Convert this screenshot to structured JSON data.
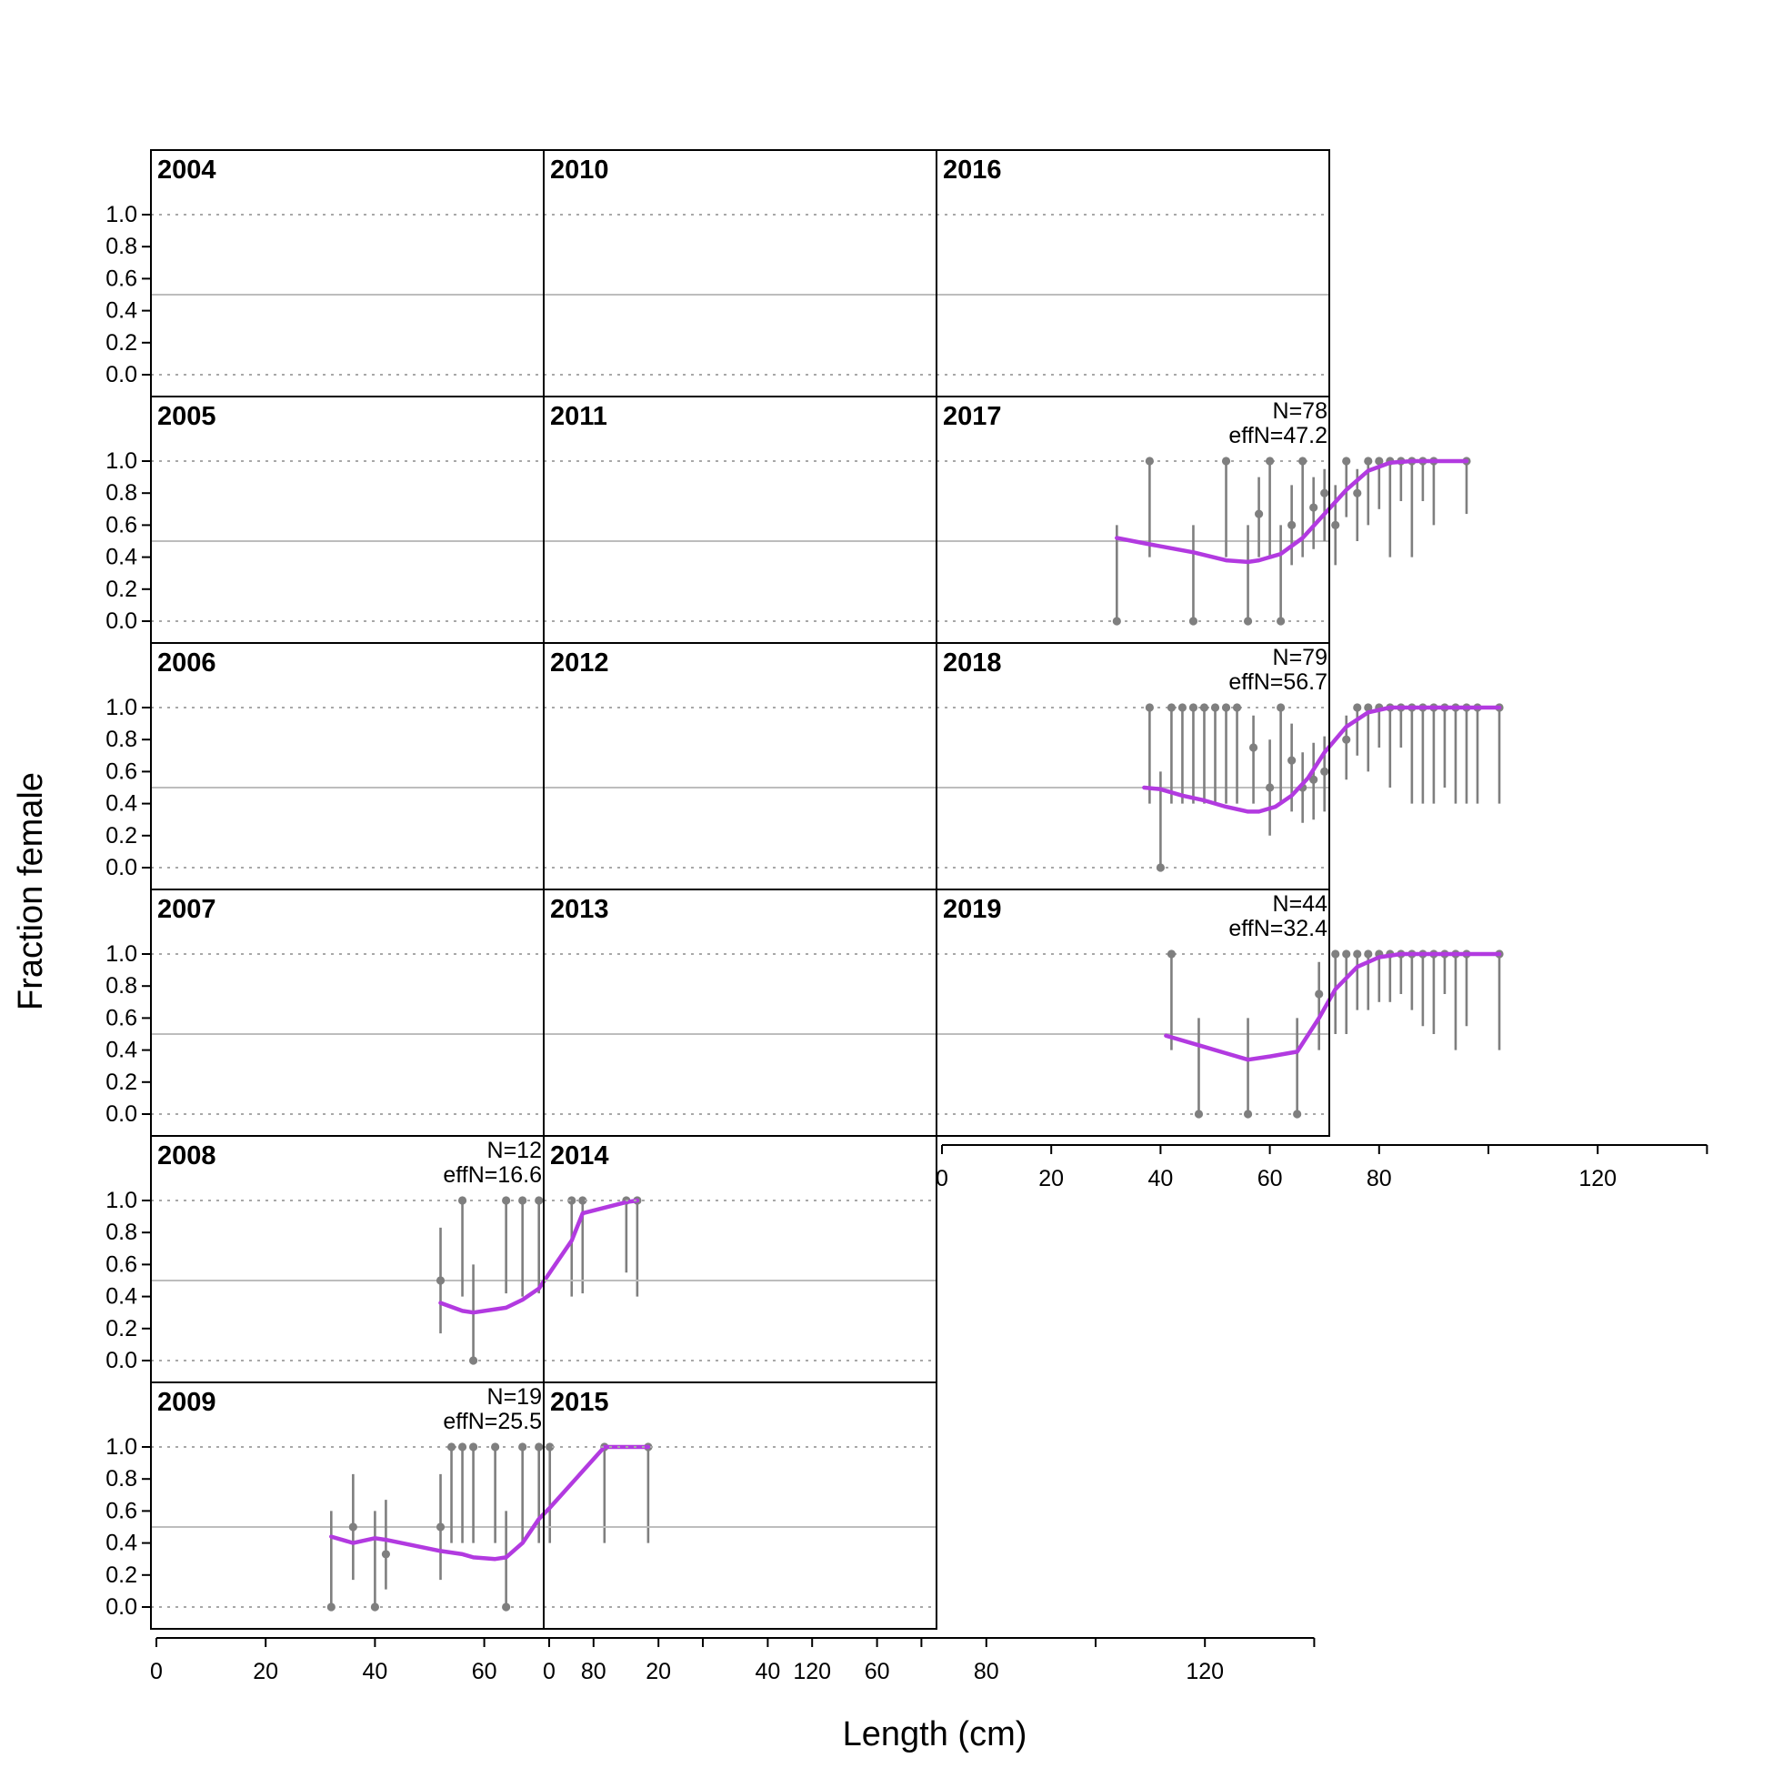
{
  "chart_data": {
    "type": "line",
    "ylabel": "Fraction female",
    "xlabel": "Length (cm)",
    "ylim": [
      0,
      1
    ],
    "yticks": [
      "0.0",
      "0.2",
      "0.4",
      "0.6",
      "0.8",
      "1.0"
    ],
    "xlim": [
      0,
      140
    ],
    "xticks": [
      "0",
      "20",
      "40",
      "60",
      "80",
      "120"
    ],
    "xtick_minor": [
      100,
      140
    ],
    "reference_lines": {
      "dotted": [
        0,
        1
      ],
      "solid": [
        0.5
      ]
    },
    "colors": {
      "observed": "#7f7f7f",
      "expected": "#b23ae0",
      "reference": "#bdbdbd"
    },
    "panels": [
      {
        "year": "2004",
        "col": 0,
        "row": 0
      },
      {
        "year": "2005",
        "col": 0,
        "row": 1
      },
      {
        "year": "2006",
        "col": 0,
        "row": 2
      },
      {
        "year": "2007",
        "col": 0,
        "row": 3
      },
      {
        "year": "2008",
        "col": 0,
        "row": 4,
        "n_label": "N=12",
        "effn_label": "effN=16.6",
        "observed": [
          {
            "x": 52,
            "y": 0.5,
            "lo": 0.17,
            "hi": 0.83
          },
          {
            "x": 56,
            "y": 1.0,
            "lo": 0.4,
            "hi": 1.0
          },
          {
            "x": 58,
            "y": 0.0,
            "lo": 0.0,
            "hi": 0.6
          },
          {
            "x": 64,
            "y": 1.0,
            "lo": 0.42,
            "hi": 1.0
          },
          {
            "x": 67,
            "y": 1.0,
            "lo": 0.4,
            "hi": 1.0
          },
          {
            "x": 70,
            "y": 1.0,
            "lo": 0.42,
            "hi": 1.0
          },
          {
            "x": 76,
            "y": 1.0,
            "lo": 0.4,
            "hi": 1.0
          },
          {
            "x": 78,
            "y": 1.0,
            "lo": 0.42,
            "hi": 1.0
          },
          {
            "x": 86,
            "y": 1.0,
            "lo": 0.55,
            "hi": 1.0
          },
          {
            "x": 88,
            "y": 1.0,
            "lo": 0.4,
            "hi": 1.0
          }
        ],
        "expected": [
          [
            52,
            0.36
          ],
          [
            56,
            0.31
          ],
          [
            58,
            0.3
          ],
          [
            64,
            0.33
          ],
          [
            67,
            0.38
          ],
          [
            70,
            0.45
          ],
          [
            76,
            0.75
          ],
          [
            78,
            0.92
          ],
          [
            86,
            0.99
          ],
          [
            88,
            1.0
          ]
        ]
      },
      {
        "year": "2009",
        "col": 0,
        "row": 5,
        "n_label": "N=19",
        "effn_label": "effN=25.5",
        "observed": [
          {
            "x": 32,
            "y": 0.0,
            "lo": 0.0,
            "hi": 0.6
          },
          {
            "x": 36,
            "y": 0.5,
            "lo": 0.17,
            "hi": 0.83
          },
          {
            "x": 40,
            "y": 0.0,
            "lo": 0.0,
            "hi": 0.6
          },
          {
            "x": 42,
            "y": 0.33,
            "lo": 0.11,
            "hi": 0.67
          },
          {
            "x": 52,
            "y": 0.5,
            "lo": 0.17,
            "hi": 0.83
          },
          {
            "x": 54,
            "y": 1.0,
            "lo": 0.4,
            "hi": 1.0
          },
          {
            "x": 56,
            "y": 1.0,
            "lo": 0.4,
            "hi": 1.0
          },
          {
            "x": 58,
            "y": 1.0,
            "lo": 0.4,
            "hi": 1.0
          },
          {
            "x": 62,
            "y": 1.0,
            "lo": 0.4,
            "hi": 1.0
          },
          {
            "x": 64,
            "y": 0.0,
            "lo": 0.0,
            "hi": 0.6
          },
          {
            "x": 67,
            "y": 1.0,
            "lo": 0.4,
            "hi": 1.0
          },
          {
            "x": 70,
            "y": 1.0,
            "lo": 0.4,
            "hi": 1.0
          },
          {
            "x": 72,
            "y": 1.0,
            "lo": 0.4,
            "hi": 1.0
          },
          {
            "x": 82,
            "y": 1.0,
            "lo": 0.4,
            "hi": 1.0
          },
          {
            "x": 90,
            "y": 1.0,
            "lo": 0.4,
            "hi": 1.0
          }
        ],
        "expected": [
          [
            32,
            0.44
          ],
          [
            36,
            0.4
          ],
          [
            40,
            0.43
          ],
          [
            42,
            0.42
          ],
          [
            52,
            0.35
          ],
          [
            56,
            0.33
          ],
          [
            58,
            0.31
          ],
          [
            62,
            0.3
          ],
          [
            64,
            0.31
          ],
          [
            67,
            0.4
          ],
          [
            70,
            0.55
          ],
          [
            72,
            0.62
          ],
          [
            82,
            1.0
          ],
          [
            90,
            1.0
          ]
        ]
      },
      {
        "year": "2010",
        "col": 1,
        "row": 0
      },
      {
        "year": "2011",
        "col": 1,
        "row": 1
      },
      {
        "year": "2012",
        "col": 1,
        "row": 2
      },
      {
        "year": "2013",
        "col": 1,
        "row": 3
      },
      {
        "year": "2014",
        "col": 1,
        "row": 4
      },
      {
        "year": "2015",
        "col": 1,
        "row": 5
      },
      {
        "year": "2016",
        "col": 2,
        "row": 0
      },
      {
        "year": "2017",
        "col": 2,
        "row": 1,
        "n_label": "N=78",
        "effn_label": "effN=47.2",
        "observed": [
          {
            "x": 32,
            "y": 0.0,
            "lo": 0.0,
            "hi": 0.6
          },
          {
            "x": 38,
            "y": 1.0,
            "lo": 0.4,
            "hi": 1.0
          },
          {
            "x": 46,
            "y": 0.0,
            "lo": 0.0,
            "hi": 0.6
          },
          {
            "x": 52,
            "y": 1.0,
            "lo": 0.4,
            "hi": 1.0
          },
          {
            "x": 56,
            "y": 0.0,
            "lo": 0.0,
            "hi": 0.6
          },
          {
            "x": 58,
            "y": 0.67,
            "lo": 0.4,
            "hi": 0.9
          },
          {
            "x": 60,
            "y": 1.0,
            "lo": 0.4,
            "hi": 1.0
          },
          {
            "x": 62,
            "y": 0.0,
            "lo": 0.0,
            "hi": 0.6
          },
          {
            "x": 64,
            "y": 0.6,
            "lo": 0.35,
            "hi": 0.85
          },
          {
            "x": 66,
            "y": 1.0,
            "lo": 0.4,
            "hi": 1.0
          },
          {
            "x": 68,
            "y": 0.71,
            "lo": 0.45,
            "hi": 0.9
          },
          {
            "x": 70,
            "y": 0.8,
            "lo": 0.5,
            "hi": 0.95
          },
          {
            "x": 72,
            "y": 0.6,
            "lo": 0.35,
            "hi": 0.85
          },
          {
            "x": 74,
            "y": 1.0,
            "lo": 0.65,
            "hi": 1.0
          },
          {
            "x": 76,
            "y": 0.8,
            "lo": 0.5,
            "hi": 0.95
          },
          {
            "x": 78,
            "y": 1.0,
            "lo": 0.6,
            "hi": 1.0
          },
          {
            "x": 80,
            "y": 1.0,
            "lo": 0.7,
            "hi": 1.0
          },
          {
            "x": 82,
            "y": 1.0,
            "lo": 0.4,
            "hi": 1.0
          },
          {
            "x": 84,
            "y": 1.0,
            "lo": 0.75,
            "hi": 1.0
          },
          {
            "x": 86,
            "y": 1.0,
            "lo": 0.4,
            "hi": 1.0
          },
          {
            "x": 88,
            "y": 1.0,
            "lo": 0.75,
            "hi": 1.0
          },
          {
            "x": 90,
            "y": 1.0,
            "lo": 0.6,
            "hi": 1.0
          },
          {
            "x": 96,
            "y": 1.0,
            "lo": 0.67,
            "hi": 1.0
          }
        ],
        "expected": [
          [
            32,
            0.52
          ],
          [
            38,
            0.48
          ],
          [
            46,
            0.43
          ],
          [
            52,
            0.38
          ],
          [
            56,
            0.37
          ],
          [
            58,
            0.38
          ],
          [
            62,
            0.42
          ],
          [
            66,
            0.52
          ],
          [
            70,
            0.67
          ],
          [
            74,
            0.82
          ],
          [
            78,
            0.94
          ],
          [
            82,
            0.99
          ],
          [
            86,
            1.0
          ],
          [
            90,
            1.0
          ],
          [
            96,
            1.0
          ]
        ]
      },
      {
        "year": "2018",
        "col": 2,
        "row": 2,
        "n_label": "N=79",
        "effn_label": "effN=56.7",
        "observed": [
          {
            "x": 38,
            "y": 1.0,
            "lo": 0.4,
            "hi": 1.0
          },
          {
            "x": 40,
            "y": 0.0,
            "lo": 0.0,
            "hi": 0.6
          },
          {
            "x": 42,
            "y": 1.0,
            "lo": 0.4,
            "hi": 1.0
          },
          {
            "x": 44,
            "y": 1.0,
            "lo": 0.4,
            "hi": 1.0
          },
          {
            "x": 46,
            "y": 1.0,
            "lo": 0.4,
            "hi": 1.0
          },
          {
            "x": 48,
            "y": 1.0,
            "lo": 0.4,
            "hi": 1.0
          },
          {
            "x": 50,
            "y": 1.0,
            "lo": 0.4,
            "hi": 1.0
          },
          {
            "x": 52,
            "y": 1.0,
            "lo": 0.4,
            "hi": 1.0
          },
          {
            "x": 54,
            "y": 1.0,
            "lo": 0.4,
            "hi": 1.0
          },
          {
            "x": 57,
            "y": 0.75,
            "lo": 0.4,
            "hi": 0.95
          },
          {
            "x": 60,
            "y": 0.5,
            "lo": 0.2,
            "hi": 0.8
          },
          {
            "x": 62,
            "y": 1.0,
            "lo": 0.4,
            "hi": 1.0
          },
          {
            "x": 64,
            "y": 0.67,
            "lo": 0.35,
            "hi": 0.9
          },
          {
            "x": 66,
            "y": 0.5,
            "lo": 0.28,
            "hi": 0.72
          },
          {
            "x": 68,
            "y": 0.55,
            "lo": 0.3,
            "hi": 0.78
          },
          {
            "x": 70,
            "y": 0.6,
            "lo": 0.35,
            "hi": 0.82
          },
          {
            "x": 74,
            "y": 0.8,
            "lo": 0.55,
            "hi": 0.95
          },
          {
            "x": 76,
            "y": 1.0,
            "lo": 0.7,
            "hi": 1.0
          },
          {
            "x": 78,
            "y": 1.0,
            "lo": 0.6,
            "hi": 1.0
          },
          {
            "x": 80,
            "y": 1.0,
            "lo": 0.75,
            "hi": 1.0
          },
          {
            "x": 82,
            "y": 1.0,
            "lo": 0.5,
            "hi": 1.0
          },
          {
            "x": 84,
            "y": 1.0,
            "lo": 0.75,
            "hi": 1.0
          },
          {
            "x": 86,
            "y": 1.0,
            "lo": 0.4,
            "hi": 1.0
          },
          {
            "x": 88,
            "y": 1.0,
            "lo": 0.4,
            "hi": 1.0
          },
          {
            "x": 90,
            "y": 1.0,
            "lo": 0.4,
            "hi": 1.0
          },
          {
            "x": 92,
            "y": 1.0,
            "lo": 0.5,
            "hi": 1.0
          },
          {
            "x": 94,
            "y": 1.0,
            "lo": 0.4,
            "hi": 1.0
          },
          {
            "x": 96,
            "y": 1.0,
            "lo": 0.4,
            "hi": 1.0
          },
          {
            "x": 98,
            "y": 1.0,
            "lo": 0.4,
            "hi": 1.0
          },
          {
            "x": 102,
            "y": 1.0,
            "lo": 0.4,
            "hi": 1.0
          }
        ],
        "expected": [
          [
            37,
            0.5
          ],
          [
            40,
            0.49
          ],
          [
            44,
            0.45
          ],
          [
            48,
            0.42
          ],
          [
            52,
            0.38
          ],
          [
            56,
            0.35
          ],
          [
            58,
            0.35
          ],
          [
            61,
            0.38
          ],
          [
            64,
            0.45
          ],
          [
            67,
            0.56
          ],
          [
            70,
            0.72
          ],
          [
            74,
            0.88
          ],
          [
            78,
            0.97
          ],
          [
            82,
            1.0
          ],
          [
            90,
            1.0
          ],
          [
            102,
            1.0
          ]
        ]
      },
      {
        "year": "2019",
        "col": 2,
        "row": 3,
        "n_label": "N=44",
        "effn_label": "effN=32.4",
        "observed": [
          {
            "x": 42,
            "y": 1.0,
            "lo": 0.4,
            "hi": 1.0
          },
          {
            "x": 47,
            "y": 0.0,
            "lo": 0.0,
            "hi": 0.6
          },
          {
            "x": 56,
            "y": 0.0,
            "lo": 0.0,
            "hi": 0.6
          },
          {
            "x": 65,
            "y": 0.0,
            "lo": 0.0,
            "hi": 0.6
          },
          {
            "x": 69,
            "y": 0.75,
            "lo": 0.4,
            "hi": 0.95
          },
          {
            "x": 72,
            "y": 1.0,
            "lo": 0.5,
            "hi": 1.0
          },
          {
            "x": 74,
            "y": 1.0,
            "lo": 0.5,
            "hi": 1.0
          },
          {
            "x": 76,
            "y": 1.0,
            "lo": 0.65,
            "hi": 1.0
          },
          {
            "x": 78,
            "y": 1.0,
            "lo": 0.65,
            "hi": 1.0
          },
          {
            "x": 80,
            "y": 1.0,
            "lo": 0.7,
            "hi": 1.0
          },
          {
            "x": 82,
            "y": 1.0,
            "lo": 0.7,
            "hi": 1.0
          },
          {
            "x": 84,
            "y": 1.0,
            "lo": 0.75,
            "hi": 1.0
          },
          {
            "x": 86,
            "y": 1.0,
            "lo": 0.65,
            "hi": 1.0
          },
          {
            "x": 88,
            "y": 1.0,
            "lo": 0.55,
            "hi": 1.0
          },
          {
            "x": 90,
            "y": 1.0,
            "lo": 0.5,
            "hi": 1.0
          },
          {
            "x": 92,
            "y": 1.0,
            "lo": 0.75,
            "hi": 1.0
          },
          {
            "x": 94,
            "y": 1.0,
            "lo": 0.4,
            "hi": 1.0
          },
          {
            "x": 96,
            "y": 1.0,
            "lo": 0.55,
            "hi": 1.0
          },
          {
            "x": 102,
            "y": 1.0,
            "lo": 0.4,
            "hi": 1.0
          }
        ],
        "expected": [
          [
            41,
            0.49
          ],
          [
            47,
            0.43
          ],
          [
            52,
            0.38
          ],
          [
            56,
            0.34
          ],
          [
            60,
            0.36
          ],
          [
            65,
            0.39
          ],
          [
            69,
            0.6
          ],
          [
            72,
            0.78
          ],
          [
            76,
            0.92
          ],
          [
            80,
            0.98
          ],
          [
            84,
            1.0
          ],
          [
            94,
            1.0
          ],
          [
            102,
            1.0
          ]
        ]
      }
    ]
  }
}
